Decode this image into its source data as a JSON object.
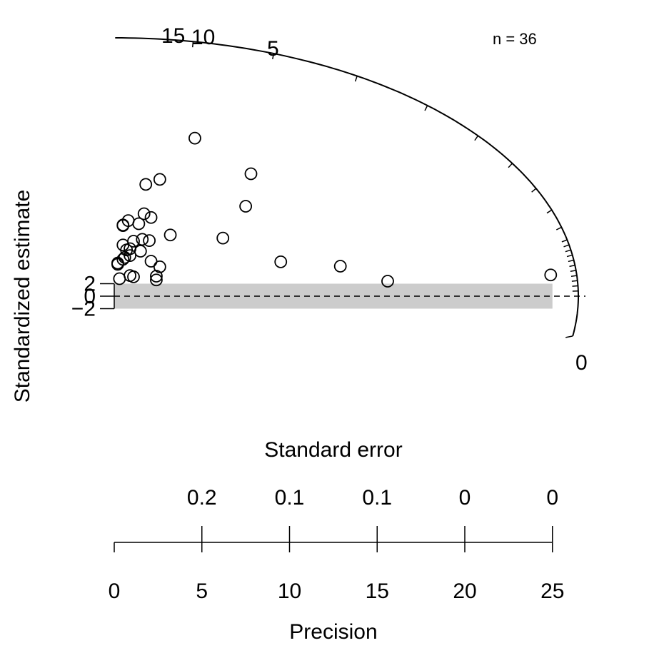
{
  "chart_data": {
    "type": "scatter",
    "subtype": "radial",
    "n_label": "n = 36",
    "ylabel": "Standardized estimate",
    "se_label": "Standard error",
    "xlabel": "Precision",
    "grid": false,
    "x_ticks": [
      0,
      5,
      10,
      15,
      20,
      25
    ],
    "se_tick_labels": [
      "0.2",
      "0.1",
      "0.1",
      "0",
      "0"
    ],
    "y_ticks": [
      2,
      0,
      -2
    ],
    "arc_labels": [
      "15",
      "10",
      "5",
      "0"
    ],
    "x_range": [
      0,
      25
    ],
    "band": [
      -2,
      2
    ],
    "points": [
      {
        "x": 4.6,
        "y": 25.3
      },
      {
        "x": 2.6,
        "y": 18.7
      },
      {
        "x": 1.8,
        "y": 17.9
      },
      {
        "x": 7.8,
        "y": 19.6
      },
      {
        "x": 7.5,
        "y": 14.4
      },
      {
        "x": 1.7,
        "y": 13.2
      },
      {
        "x": 2.1,
        "y": 12.6
      },
      {
        "x": 0.8,
        "y": 12.1
      },
      {
        "x": 0.5,
        "y": 11.4
      },
      {
        "x": 0.5,
        "y": 11.3
      },
      {
        "x": 1.4,
        "y": 11.6
      },
      {
        "x": 3.2,
        "y": 9.8
      },
      {
        "x": 6.2,
        "y": 9.3
      },
      {
        "x": 2.0,
        "y": 8.9
      },
      {
        "x": 1.6,
        "y": 9.1
      },
      {
        "x": 1.1,
        "y": 8.8
      },
      {
        "x": 0.5,
        "y": 8.2
      },
      {
        "x": 0.9,
        "y": 7.6
      },
      {
        "x": 0.7,
        "y": 7.4
      },
      {
        "x": 1.5,
        "y": 7.2
      },
      {
        "x": 0.9,
        "y": 6.5
      },
      {
        "x": 0.6,
        "y": 6.2
      },
      {
        "x": 0.5,
        "y": 5.9
      },
      {
        "x": 0.2,
        "y": 5.3
      },
      {
        "x": 0.2,
        "y": 5.1
      },
      {
        "x": 2.1,
        "y": 5.6
      },
      {
        "x": 2.6,
        "y": 4.7
      },
      {
        "x": 9.5,
        "y": 5.5
      },
      {
        "x": 12.9,
        "y": 4.8
      },
      {
        "x": 0.9,
        "y": 3.3
      },
      {
        "x": 1.1,
        "y": 3.1
      },
      {
        "x": 2.4,
        "y": 3.2
      },
      {
        "x": 2.4,
        "y": 2.6
      },
      {
        "x": 0.3,
        "y": 2.8
      },
      {
        "x": 15.6,
        "y": 2.4
      },
      {
        "x": 24.9,
        "y": 3.4
      }
    ]
  }
}
